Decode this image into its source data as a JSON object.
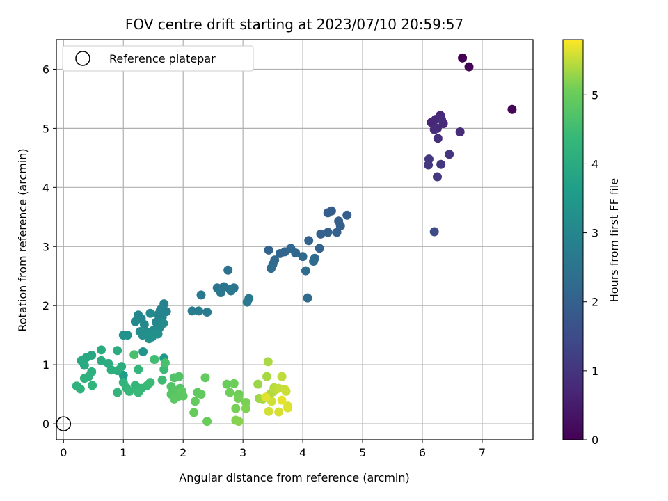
{
  "chart_data": {
    "type": "scatter",
    "title": "FOV centre drift starting at 2023/07/10 20:59:57",
    "xlabel": "Angular distance from reference (arcmin)",
    "ylabel": "Rotation from reference (arcmin)",
    "xlim": [
      -0.12,
      7.85
    ],
    "ylim": [
      -0.27,
      6.5
    ],
    "xticks": [
      0,
      1,
      2,
      3,
      4,
      5,
      6,
      7
    ],
    "yticks": [
      0,
      1,
      2,
      3,
      4,
      5,
      6
    ],
    "grid": true,
    "colormap": "viridis",
    "legend_position": "top-left",
    "legend_label": "Reference platepar",
    "reference_point": {
      "x": 0,
      "y": 0
    },
    "colorbar": {
      "label": "Hours from first FF file",
      "range": [
        0,
        5.8
      ],
      "ticks": [
        0,
        1,
        2,
        3,
        4,
        5
      ]
    },
    "points": [
      {
        "x": 6.67,
        "y": 6.19,
        "c": 0.0
      },
      {
        "x": 6.78,
        "y": 6.04,
        "c": 0.05
      },
      {
        "x": 7.5,
        "y": 5.32,
        "c": 0.1
      },
      {
        "x": 6.15,
        "y": 5.1,
        "c": 0.7
      },
      {
        "x": 6.22,
        "y": 5.15,
        "c": 0.72
      },
      {
        "x": 6.3,
        "y": 5.22,
        "c": 0.74
      },
      {
        "x": 6.35,
        "y": 5.08,
        "c": 0.76
      },
      {
        "x": 6.25,
        "y": 5.0,
        "c": 0.78
      },
      {
        "x": 6.2,
        "y": 4.98,
        "c": 0.8
      },
      {
        "x": 6.63,
        "y": 4.94,
        "c": 0.82
      },
      {
        "x": 6.32,
        "y": 5.15,
        "c": 0.84
      },
      {
        "x": 6.26,
        "y": 4.83,
        "c": 0.9
      },
      {
        "x": 6.45,
        "y": 4.56,
        "c": 1.0
      },
      {
        "x": 6.11,
        "y": 4.48,
        "c": 1.02
      },
      {
        "x": 6.1,
        "y": 4.38,
        "c": 1.04
      },
      {
        "x": 6.31,
        "y": 4.39,
        "c": 1.06
      },
      {
        "x": 6.25,
        "y": 4.18,
        "c": 1.1
      },
      {
        "x": 6.2,
        "y": 3.25,
        "c": 1.5
      },
      {
        "x": 4.74,
        "y": 3.53,
        "c": 1.9
      },
      {
        "x": 4.48,
        "y": 3.6,
        "c": 1.92
      },
      {
        "x": 4.42,
        "y": 3.57,
        "c": 1.94
      },
      {
        "x": 4.6,
        "y": 3.43,
        "c": 1.96
      },
      {
        "x": 4.63,
        "y": 3.35,
        "c": 1.98
      },
      {
        "x": 4.57,
        "y": 3.24,
        "c": 2.0
      },
      {
        "x": 4.3,
        "y": 3.21,
        "c": 2.0
      },
      {
        "x": 4.42,
        "y": 3.24,
        "c": 2.02
      },
      {
        "x": 4.1,
        "y": 3.1,
        "c": 2.04
      },
      {
        "x": 4.28,
        "y": 2.97,
        "c": 2.06
      },
      {
        "x": 3.43,
        "y": 2.94,
        "c": 2.08
      },
      {
        "x": 3.62,
        "y": 2.88,
        "c": 2.1
      },
      {
        "x": 3.7,
        "y": 2.91,
        "c": 2.12
      },
      {
        "x": 3.8,
        "y": 2.97,
        "c": 2.14
      },
      {
        "x": 3.88,
        "y": 2.89,
        "c": 2.16
      },
      {
        "x": 4.0,
        "y": 2.83,
        "c": 2.18
      },
      {
        "x": 3.53,
        "y": 2.77,
        "c": 2.2
      },
      {
        "x": 3.5,
        "y": 2.7,
        "c": 2.22
      },
      {
        "x": 4.2,
        "y": 2.8,
        "c": 2.24
      },
      {
        "x": 4.18,
        "y": 2.75,
        "c": 2.26
      },
      {
        "x": 3.47,
        "y": 2.63,
        "c": 2.28
      },
      {
        "x": 4.05,
        "y": 2.59,
        "c": 2.3
      },
      {
        "x": 4.08,
        "y": 2.13,
        "c": 2.3
      },
      {
        "x": 2.75,
        "y": 2.6,
        "c": 2.45
      },
      {
        "x": 2.57,
        "y": 2.3,
        "c": 2.5
      },
      {
        "x": 2.68,
        "y": 2.32,
        "c": 2.52
      },
      {
        "x": 2.78,
        "y": 2.28,
        "c": 2.54
      },
      {
        "x": 2.85,
        "y": 2.3,
        "c": 2.56
      },
      {
        "x": 2.63,
        "y": 2.22,
        "c": 2.58
      },
      {
        "x": 2.8,
        "y": 2.25,
        "c": 2.6
      },
      {
        "x": 3.1,
        "y": 2.12,
        "c": 2.62
      },
      {
        "x": 3.07,
        "y": 2.06,
        "c": 2.64
      },
      {
        "x": 2.3,
        "y": 2.18,
        "c": 2.66
      },
      {
        "x": 2.15,
        "y": 1.91,
        "c": 2.7
      },
      {
        "x": 2.26,
        "y": 1.91,
        "c": 2.72
      },
      {
        "x": 2.4,
        "y": 1.89,
        "c": 2.74
      },
      {
        "x": 1.68,
        "y": 2.03,
        "c": 2.9
      },
      {
        "x": 1.72,
        "y": 1.9,
        "c": 2.92
      },
      {
        "x": 1.62,
        "y": 1.93,
        "c": 2.94
      },
      {
        "x": 1.58,
        "y": 1.85,
        "c": 2.96
      },
      {
        "x": 1.65,
        "y": 1.8,
        "c": 2.98
      },
      {
        "x": 1.55,
        "y": 1.72,
        "c": 3.0
      },
      {
        "x": 1.25,
        "y": 1.84,
        "c": 3.02
      },
      {
        "x": 1.3,
        "y": 1.78,
        "c": 3.04
      },
      {
        "x": 1.2,
        "y": 1.73,
        "c": 3.06
      },
      {
        "x": 1.35,
        "y": 1.68,
        "c": 3.08
      },
      {
        "x": 1.45,
        "y": 1.87,
        "c": 3.1
      },
      {
        "x": 1.6,
        "y": 1.62,
        "c": 3.12
      },
      {
        "x": 1.67,
        "y": 1.7,
        "c": 3.14
      },
      {
        "x": 1.5,
        "y": 1.58,
        "c": 3.16
      },
      {
        "x": 1.4,
        "y": 1.55,
        "c": 3.18
      },
      {
        "x": 1.28,
        "y": 1.56,
        "c": 3.2
      },
      {
        "x": 1.32,
        "y": 1.5,
        "c": 3.22
      },
      {
        "x": 1.45,
        "y": 1.52,
        "c": 3.24
      },
      {
        "x": 1.58,
        "y": 1.52,
        "c": 3.26
      },
      {
        "x": 1.48,
        "y": 1.47,
        "c": 3.28
      },
      {
        "x": 1.43,
        "y": 1.44,
        "c": 3.3
      },
      {
        "x": 1.0,
        "y": 1.5,
        "c": 3.32
      },
      {
        "x": 1.07,
        "y": 1.5,
        "c": 3.34
      },
      {
        "x": 1.33,
        "y": 1.22,
        "c": 3.4
      },
      {
        "x": 1.68,
        "y": 1.11,
        "c": 3.5
      },
      {
        "x": 1.0,
        "y": 0.82,
        "c": 3.6
      },
      {
        "x": 0.47,
        "y": 1.16,
        "c": 3.9
      },
      {
        "x": 0.38,
        "y": 1.12,
        "c": 3.92
      },
      {
        "x": 0.3,
        "y": 1.07,
        "c": 3.94
      },
      {
        "x": 0.35,
        "y": 0.99,
        "c": 3.96
      },
      {
        "x": 0.63,
        "y": 1.25,
        "c": 3.98
      },
      {
        "x": 0.9,
        "y": 1.24,
        "c": 4.0
      },
      {
        "x": 0.63,
        "y": 1.07,
        "c": 4.02
      },
      {
        "x": 0.75,
        "y": 1.02,
        "c": 4.04
      },
      {
        "x": 0.97,
        "y": 0.97,
        "c": 4.06
      },
      {
        "x": 0.8,
        "y": 0.91,
        "c": 4.08
      },
      {
        "x": 0.9,
        "y": 0.9,
        "c": 4.1
      },
      {
        "x": 0.47,
        "y": 0.88,
        "c": 4.12
      },
      {
        "x": 0.42,
        "y": 0.8,
        "c": 4.14
      },
      {
        "x": 0.35,
        "y": 0.77,
        "c": 4.16
      },
      {
        "x": 0.22,
        "y": 0.64,
        "c": 4.18
      },
      {
        "x": 0.28,
        "y": 0.59,
        "c": 4.2
      },
      {
        "x": 0.48,
        "y": 0.65,
        "c": 4.22
      },
      {
        "x": 1.0,
        "y": 0.7,
        "c": 4.24
      },
      {
        "x": 0.9,
        "y": 0.53,
        "c": 4.26
      },
      {
        "x": 1.25,
        "y": 0.92,
        "c": 4.28
      },
      {
        "x": 1.05,
        "y": 0.61,
        "c": 4.3
      },
      {
        "x": 1.2,
        "y": 0.65,
        "c": 4.32
      },
      {
        "x": 1.1,
        "y": 0.55,
        "c": 4.34
      },
      {
        "x": 1.3,
        "y": 0.6,
        "c": 4.36
      },
      {
        "x": 1.25,
        "y": 0.53,
        "c": 4.38
      },
      {
        "x": 1.4,
        "y": 0.65,
        "c": 4.4
      },
      {
        "x": 1.45,
        "y": 0.7,
        "c": 4.42
      },
      {
        "x": 1.68,
        "y": 0.92,
        "c": 4.44
      },
      {
        "x": 1.65,
        "y": 0.74,
        "c": 4.46
      },
      {
        "x": 1.52,
        "y": 1.09,
        "c": 4.5
      },
      {
        "x": 1.18,
        "y": 1.17,
        "c": 4.6
      },
      {
        "x": 1.7,
        "y": 1.03,
        "c": 4.62
      },
      {
        "x": 1.85,
        "y": 0.78,
        "c": 4.7
      },
      {
        "x": 1.93,
        "y": 0.8,
        "c": 4.72
      },
      {
        "x": 1.8,
        "y": 0.63,
        "c": 4.74
      },
      {
        "x": 1.95,
        "y": 0.6,
        "c": 4.76
      },
      {
        "x": 1.87,
        "y": 0.56,
        "c": 4.78
      },
      {
        "x": 1.8,
        "y": 0.5,
        "c": 4.8
      },
      {
        "x": 1.9,
        "y": 0.45,
        "c": 4.82
      },
      {
        "x": 1.85,
        "y": 0.42,
        "c": 4.84
      },
      {
        "x": 2.0,
        "y": 0.47,
        "c": 4.86
      },
      {
        "x": 1.98,
        "y": 0.55,
        "c": 4.88
      },
      {
        "x": 2.24,
        "y": 0.53,
        "c": 4.9
      },
      {
        "x": 2.3,
        "y": 0.5,
        "c": 4.92
      },
      {
        "x": 2.37,
        "y": 0.78,
        "c": 4.94
      },
      {
        "x": 2.2,
        "y": 0.38,
        "c": 4.96
      },
      {
        "x": 2.18,
        "y": 0.19,
        "c": 4.98
      },
      {
        "x": 2.4,
        "y": 0.04,
        "c": 5.0
      },
      {
        "x": 2.73,
        "y": 0.67,
        "c": 5.02
      },
      {
        "x": 2.85,
        "y": 0.68,
        "c": 5.04
      },
      {
        "x": 2.78,
        "y": 0.53,
        "c": 5.06
      },
      {
        "x": 2.93,
        "y": 0.5,
        "c": 5.08
      },
      {
        "x": 2.92,
        "y": 0.43,
        "c": 5.1
      },
      {
        "x": 2.88,
        "y": 0.26,
        "c": 5.12
      },
      {
        "x": 3.05,
        "y": 0.36,
        "c": 5.14
      },
      {
        "x": 3.05,
        "y": 0.26,
        "c": 5.16
      },
      {
        "x": 2.88,
        "y": 0.06,
        "c": 5.18
      },
      {
        "x": 2.93,
        "y": 0.04,
        "c": 5.2
      },
      {
        "x": 3.25,
        "y": 0.67,
        "c": 5.3
      },
      {
        "x": 3.27,
        "y": 0.43,
        "c": 5.32
      },
      {
        "x": 3.33,
        "y": 0.42,
        "c": 5.34
      },
      {
        "x": 3.4,
        "y": 0.8,
        "c": 5.36
      },
      {
        "x": 3.42,
        "y": 1.05,
        "c": 5.38
      },
      {
        "x": 3.45,
        "y": 0.5,
        "c": 5.4
      },
      {
        "x": 3.5,
        "y": 0.54,
        "c": 5.42
      },
      {
        "x": 3.52,
        "y": 0.61,
        "c": 5.44
      },
      {
        "x": 3.55,
        "y": 0.58,
        "c": 5.46
      },
      {
        "x": 3.65,
        "y": 0.8,
        "c": 5.48
      },
      {
        "x": 3.6,
        "y": 0.6,
        "c": 5.5
      },
      {
        "x": 3.7,
        "y": 0.58,
        "c": 5.52
      },
      {
        "x": 3.72,
        "y": 0.55,
        "c": 5.54
      },
      {
        "x": 3.48,
        "y": 0.38,
        "c": 5.56
      },
      {
        "x": 3.43,
        "y": 0.21,
        "c": 5.58
      },
      {
        "x": 3.6,
        "y": 0.2,
        "c": 5.6
      },
      {
        "x": 3.75,
        "y": 0.3,
        "c": 5.62
      },
      {
        "x": 3.75,
        "y": 0.27,
        "c": 5.64
      },
      {
        "x": 3.38,
        "y": 0.45,
        "c": 5.66
      },
      {
        "x": 3.65,
        "y": 0.4,
        "c": 5.68
      }
    ]
  }
}
